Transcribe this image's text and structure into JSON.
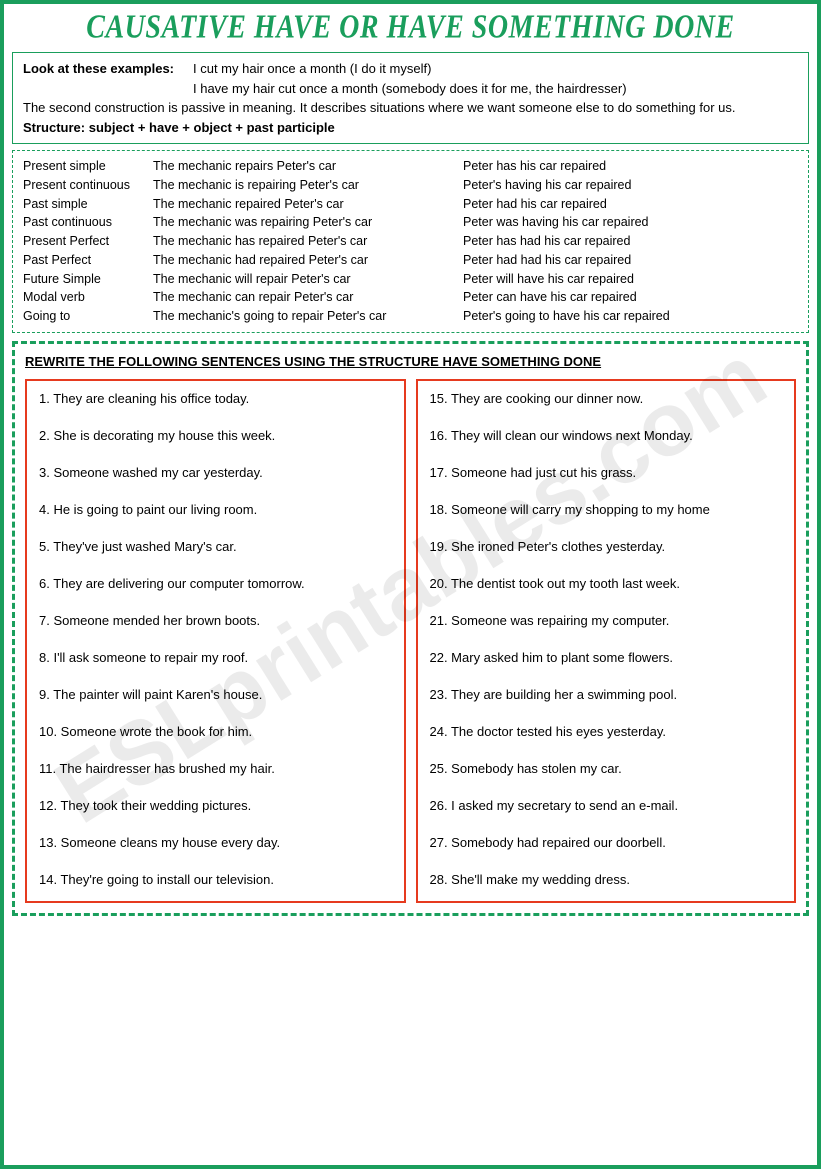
{
  "title": "CAUSATIVE HAVE OR HAVE SOMETHING DONE",
  "intro": {
    "label": "Look at these examples:",
    "example1": "I cut my hair once a month (I do it myself)",
    "example2": "I have my hair cut once a month (somebody does it for me, the hairdresser)",
    "explanation": "The second construction is passive in meaning. It describes situations where we want someone else to do something for us.",
    "structure": "Structure: subject + have + object + past participle"
  },
  "tenses": [
    {
      "name": "Present simple",
      "active": "The mechanic repairs Peter's car",
      "causative": "Peter has his car repaired"
    },
    {
      "name": "Present continuous",
      "active": "The mechanic is repairing Peter's car",
      "causative": "Peter's having his car repaired"
    },
    {
      "name": "Past simple",
      "active": "The mechanic repaired Peter's car",
      "causative": "Peter had his car repaired"
    },
    {
      "name": "Past continuous",
      "active": "The mechanic was repairing Peter's car",
      "causative": "Peter was having his car repaired"
    },
    {
      "name": "Present Perfect",
      "active": "The mechanic has repaired Peter's car",
      "causative": "Peter has had his car repaired"
    },
    {
      "name": "Past Perfect",
      "active": "The mechanic had repaired Peter's car",
      "causative": "Peter had had his car repaired"
    },
    {
      "name": "Future Simple",
      "active": "The mechanic will repair Peter's car",
      "causative": "Peter will have his car repaired"
    },
    {
      "name": "Modal verb",
      "active": "The mechanic can repair Peter's car",
      "causative": "Peter can have his car repaired"
    },
    {
      "name": "Going to",
      "active": "The mechanic's going to repair Peter's car",
      "causative": "Peter's going to have his car repaired"
    }
  ],
  "instruction": "REWRITE THE FOLLOWING SENTENCES USING THE STRUCTURE HAVE SOMETHING DONE",
  "sentences_left": [
    "1. They are cleaning his office today.",
    "2. She is decorating my house this week.",
    "3. Someone washed my car yesterday.",
    "4. He is going to paint our living room.",
    "5. They've just washed Mary's car.",
    "6. They are delivering our computer tomorrow.",
    "7. Someone mended her brown boots.",
    "8. I'll ask someone to repair my roof.",
    "9. The painter will paint Karen's house.",
    "10. Someone wrote the book for him.",
    "11. The hairdresser has brushed my hair.",
    "12. They took their wedding pictures.",
    "13. Someone cleans my house every day.",
    "14. They're going to install our television."
  ],
  "sentences_right": [
    "15. They are cooking our dinner now.",
    "16. They will clean our windows next Monday.",
    "17. Someone had just cut his grass.",
    "18. Someone will carry my shopping to my home",
    "19. She ironed Peter's clothes yesterday.",
    "20. The dentist took out my tooth last week.",
    "21. Someone was repairing my computer.",
    "22. Mary asked him to plant some flowers.",
    "23. They are building her a swimming pool.",
    "24. The doctor tested his eyes yesterday.",
    "25. Somebody has stolen my car.",
    "26. I asked my secretary to send an e-mail.",
    "27. Somebody had repaired our doorbell.",
    "28. She'll make my wedding dress."
  ],
  "watermark": "ESLprintables.com",
  "colors": {
    "green": "#1a9e5c",
    "red": "#e63a1f"
  }
}
